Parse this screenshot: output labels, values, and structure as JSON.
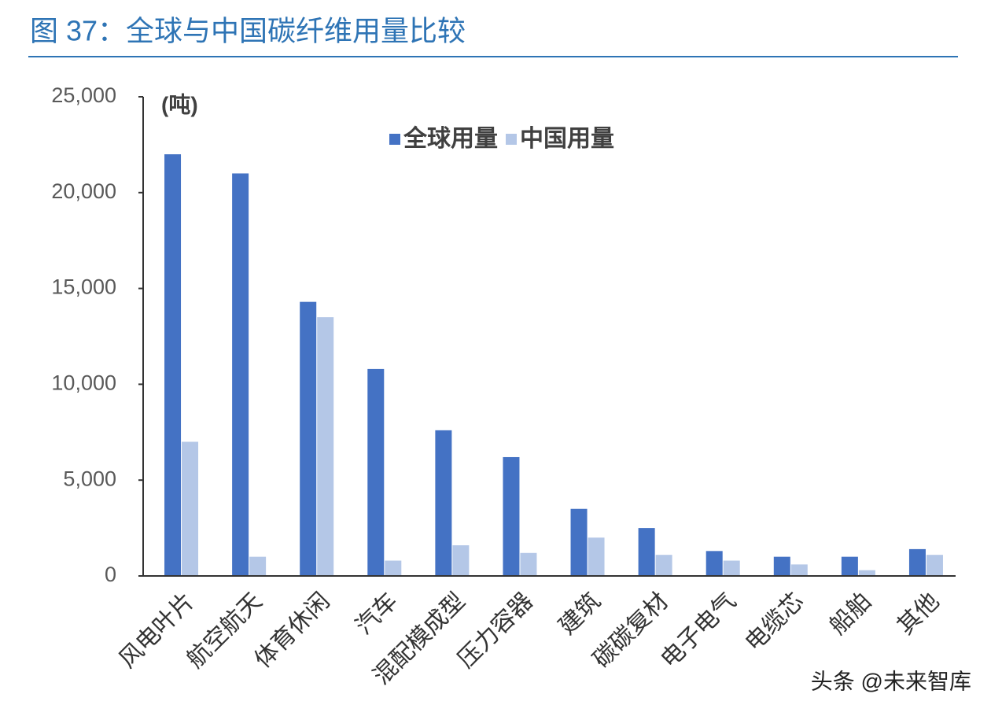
{
  "chart_data": {
    "type": "bar",
    "title": "图 37：全球与中国碳纤维用量比较",
    "unit_label": "(吨)",
    "watermark": "头条 @未来智库",
    "categories": [
      "风电叶片",
      "航空航天",
      "体育休闲",
      "汽车",
      "混配模成型",
      "压力容器",
      "建筑",
      "碳碳复材",
      "电子电气",
      "电缆芯",
      "船舶",
      "其他"
    ],
    "series": [
      {
        "name": "全球用量",
        "color": "#4472c4",
        "values": [
          22000,
          21000,
          14300,
          10800,
          7600,
          6200,
          3500,
          2500,
          1300,
          1000,
          1000,
          1400
        ]
      },
      {
        "name": "中国用量",
        "color": "#b4c7e7",
        "values": [
          7000,
          1000,
          13500,
          800,
          1600,
          1200,
          2000,
          1100,
          800,
          600,
          300,
          1100
        ]
      }
    ],
    "ylim": [
      0,
      25000
    ],
    "yticks": [
      0,
      {
        "value": 5000,
        "label": "5,000"
      },
      {
        "value": 10000,
        "label": "10,000"
      },
      {
        "value": 15000,
        "label": "15,000"
      },
      {
        "value": 20000,
        "label": "20,000"
      },
      {
        "value": 25000,
        "label": "25,000"
      }
    ],
    "legend": "top-center"
  }
}
